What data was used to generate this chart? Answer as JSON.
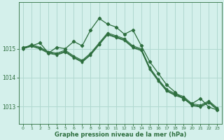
{
  "title": "Graphe pression niveau de la mer (hPa)",
  "bg_color": "#d4f0eb",
  "grid_color": "#b0d8d0",
  "line_color": "#2d6e3e",
  "xlim": [
    -0.5,
    23.5
  ],
  "ylim": [
    1012.4,
    1016.6
  ],
  "yticks": [
    1013,
    1014,
    1015
  ],
  "xticks": [
    0,
    1,
    2,
    3,
    4,
    5,
    6,
    7,
    8,
    9,
    10,
    11,
    12,
    13,
    14,
    15,
    16,
    17,
    18,
    19,
    20,
    21,
    22,
    23
  ],
  "series": [
    [
      1015.0,
      1015.15,
      1015.05,
      1014.9,
      1014.85,
      1014.95,
      1014.75,
      1014.6,
      1014.85,
      1015.2,
      1015.55,
      1015.45,
      1015.35,
      1015.1,
      1015.0,
      1014.35,
      1013.95,
      1013.6,
      1013.45,
      1013.35,
      1013.1,
      1013.05,
      1013.2,
      1012.95
    ],
    [
      1015.0,
      1015.12,
      1015.03,
      1014.88,
      1014.82,
      1014.92,
      1014.72,
      1014.57,
      1014.82,
      1015.17,
      1015.52,
      1015.42,
      1015.32,
      1015.07,
      1014.97,
      1014.32,
      1013.92,
      1013.57,
      1013.42,
      1013.32,
      1013.07,
      1013.02,
      1013.17,
      1012.92
    ],
    [
      1015.0,
      1015.1,
      1015.01,
      1014.86,
      1014.8,
      1014.9,
      1014.7,
      1014.55,
      1014.8,
      1015.15,
      1015.5,
      1015.4,
      1015.3,
      1015.05,
      1014.95,
      1014.3,
      1013.9,
      1013.55,
      1013.4,
      1013.3,
      1013.05,
      1013.0,
      1013.15,
      1012.9
    ],
    [
      1015.0,
      1015.08,
      1014.99,
      1014.84,
      1014.78,
      1014.88,
      1014.68,
      1014.53,
      1014.78,
      1015.13,
      1015.48,
      1015.38,
      1015.28,
      1015.03,
      1014.93,
      1014.28,
      1013.88,
      1013.53,
      1013.38,
      1013.28,
      1013.03,
      1012.98,
      1013.13,
      1012.88
    ]
  ],
  "main_series": [
    1015.05,
    1015.1,
    1015.2,
    1014.85,
    1015.05,
    1015.0,
    1015.25,
    1015.1,
    1015.65,
    1016.05,
    1015.85,
    1015.75,
    1015.5,
    1015.65,
    1015.1,
    1014.55,
    1014.15,
    1013.75,
    1013.5,
    1013.25,
    1013.1,
    1013.28,
    1012.98,
    1012.88
  ]
}
